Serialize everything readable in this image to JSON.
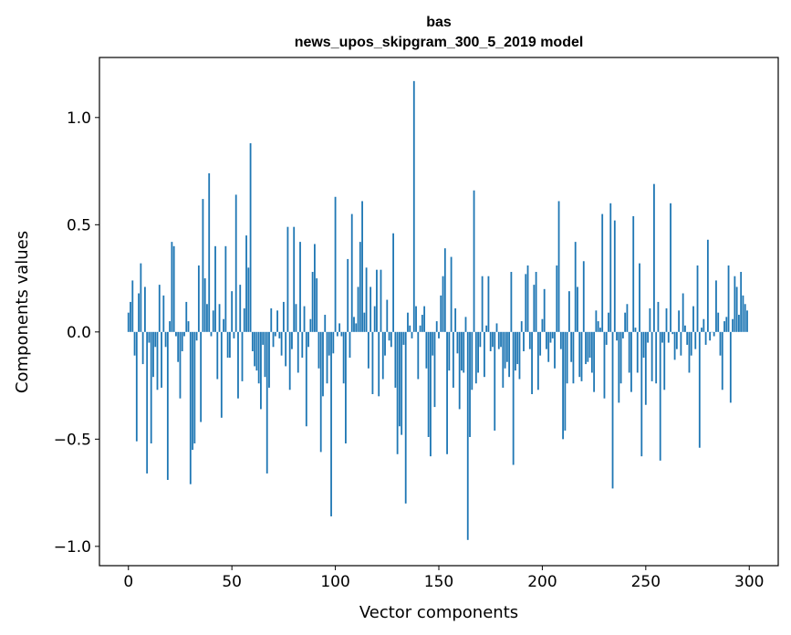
{
  "chart_data": {
    "type": "bar",
    "title": "bas",
    "subtitle": "news_upos_skipgram_300_5_2019 model",
    "xlabel": "Vector components",
    "ylabel": "Components values",
    "xlim": [
      -14,
      314
    ],
    "ylim": [
      -1.09,
      1.28
    ],
    "xticks": [
      0,
      50,
      100,
      150,
      200,
      250,
      300
    ],
    "xtick_labels": [
      "0",
      "50",
      "100",
      "150",
      "200",
      "250",
      "300"
    ],
    "yticks": [
      -1.0,
      -0.5,
      0.0,
      0.5,
      1.0
    ],
    "ytick_labels": [
      "−1.0",
      "−0.5",
      "0.0",
      "0.5",
      "1.0"
    ],
    "grid": false,
    "bar_color": "#1f77b4",
    "x": "indices 0..299",
    "values": [
      0.09,
      0.14,
      0.24,
      -0.11,
      -0.51,
      0.18,
      0.32,
      -0.15,
      0.21,
      -0.66,
      -0.05,
      -0.52,
      -0.21,
      -0.07,
      -0.27,
      0.22,
      -0.26,
      0.17,
      -0.07,
      -0.69,
      0.05,
      0.42,
      0.4,
      -0.02,
      -0.14,
      -0.31,
      -0.09,
      -0.02,
      0.14,
      0.05,
      -0.71,
      -0.55,
      -0.52,
      -0.04,
      0.31,
      -0.42,
      0.62,
      0.25,
      0.13,
      0.74,
      -0.02,
      0.1,
      0.4,
      -0.22,
      0.13,
      -0.4,
      0.06,
      0.4,
      -0.12,
      -0.12,
      0.19,
      -0.03,
      0.64,
      -0.31,
      0.22,
      -0.23,
      0.11,
      0.45,
      0.3,
      0.88,
      -0.09,
      -0.16,
      -0.18,
      -0.24,
      -0.36,
      -0.06,
      -0.21,
      -0.66,
      -0.26,
      0.11,
      -0.07,
      -0.02,
      0.1,
      -0.03,
      -0.11,
      0.14,
      -0.16,
      0.49,
      -0.27,
      -0.08,
      0.49,
      0.13,
      -0.19,
      0.42,
      -0.12,
      0.12,
      -0.44,
      -0.07,
      0.06,
      0.28,
      0.41,
      0.25,
      -0.17,
      -0.56,
      -0.3,
      0.08,
      -0.24,
      -0.11,
      -0.86,
      -0.1,
      0.63,
      -0.02,
      0.04,
      -0.02,
      -0.24,
      -0.52,
      0.34,
      -0.12,
      0.55,
      0.07,
      0.04,
      0.21,
      0.42,
      0.61,
      0.09,
      0.3,
      -0.17,
      0.21,
      -0.29,
      0.12,
      0.29,
      -0.3,
      0.29,
      -0.22,
      -0.11,
      0.15,
      -0.04,
      -0.07,
      0.46,
      -0.26,
      -0.57,
      -0.44,
      -0.48,
      -0.06,
      -0.8,
      0.09,
      0.03,
      -0.03,
      1.17,
      0.12,
      -0.22,
      0.03,
      0.08,
      0.12,
      -0.17,
      -0.49,
      -0.58,
      -0.11,
      -0.35,
      0.05,
      -0.03,
      0.17,
      0.26,
      0.39,
      -0.57,
      -0.18,
      0.35,
      -0.26,
      0.11,
      -0.1,
      -0.36,
      -0.18,
      -0.19,
      0.07,
      -0.97,
      -0.49,
      -0.27,
      0.66,
      -0.24,
      -0.19,
      -0.07,
      0.26,
      -0.21,
      0.03,
      0.26,
      -0.09,
      -0.07,
      -0.46,
      0.04,
      -0.08,
      -0.07,
      -0.26,
      -0.17,
      -0.14,
      -0.21,
      0.28,
      -0.62,
      -0.18,
      -0.15,
      -0.22,
      0.05,
      -0.09,
      0.27,
      0.31,
      -0.08,
      -0.29,
      0.22,
      0.28,
      -0.27,
      -0.11,
      0.06,
      0.2,
      -0.08,
      -0.14,
      -0.05,
      -0.03,
      -0.17,
      0.31,
      0.61,
      -0.08,
      -0.5,
      -0.46,
      -0.24,
      0.19,
      -0.14,
      -0.24,
      0.42,
      0.21,
      -0.21,
      -0.23,
      0.33,
      -0.15,
      -0.14,
      -0.12,
      -0.19,
      -0.28,
      0.1,
      0.05,
      0.02,
      0.55,
      -0.31,
      -0.06,
      0.09,
      0.6,
      -0.73,
      0.52,
      -0.04,
      -0.33,
      -0.24,
      -0.03,
      0.09,
      0.13,
      -0.19,
      -0.28,
      0.54,
      0.02,
      -0.19,
      0.32,
      -0.58,
      -0.12,
      -0.34,
      -0.05,
      0.11,
      -0.23,
      0.69,
      -0.24,
      0.14,
      -0.6,
      -0.05,
      -0.27,
      0.11,
      -0.05,
      0.6,
      -0.01,
      -0.13,
      -0.08,
      0.1,
      -0.11,
      0.18,
      0.03,
      -0.06,
      -0.19,
      -0.11,
      0.12,
      -0.08,
      0.31,
      -0.54,
      0.02,
      0.06,
      -0.06,
      0.43,
      -0.04,
      0.0,
      -0.02,
      0.24,
      0.09,
      -0.11,
      -0.27,
      0.05,
      0.07,
      0.31,
      -0.33,
      0.06,
      0.26,
      0.21,
      0.08,
      0.28,
      0.17,
      0.13,
      0.1
    ]
  }
}
